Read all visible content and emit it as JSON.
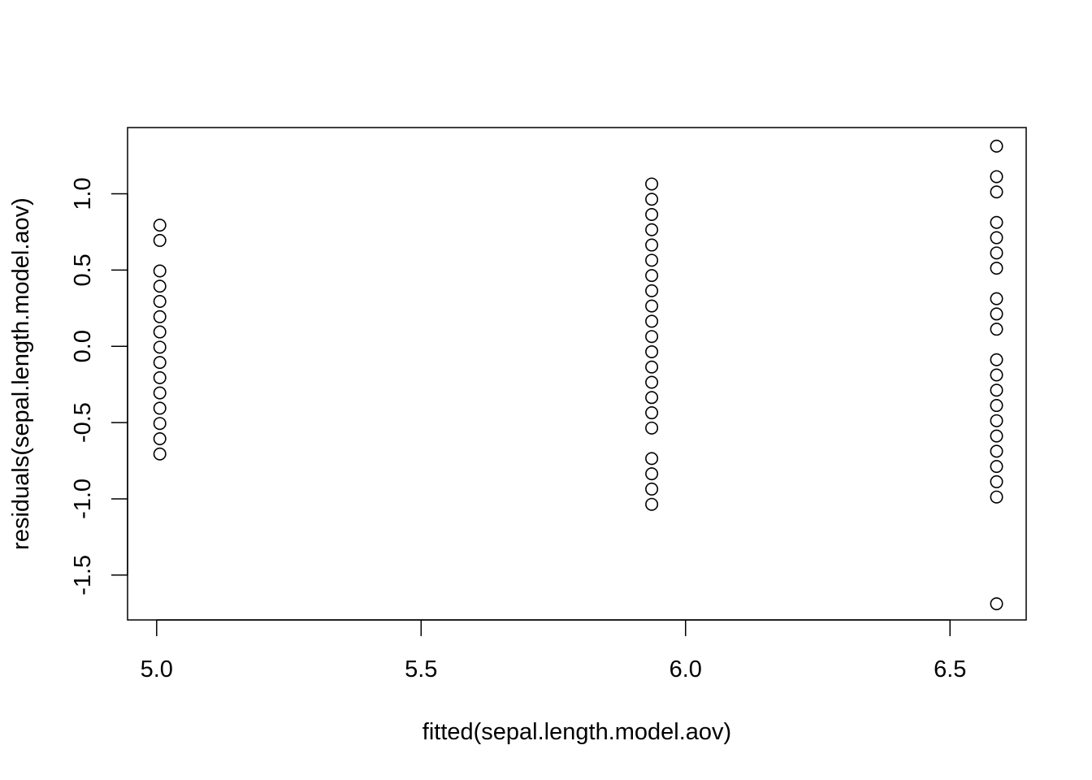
{
  "chart_data": {
    "type": "scatter",
    "title": "",
    "xlabel": "fitted(sepal.length.model.aov)",
    "ylabel": "residuals(sepal.length.model.aov)",
    "xlim": [
      4.945,
      6.644
    ],
    "ylim": [
      -1.794,
      1.434
    ],
    "xticks": [
      "5.0",
      "5.5",
      "6.0",
      "6.5"
    ],
    "yticks": [
      "-1.5",
      "-1.0",
      "-0.5",
      "0.0",
      "0.5",
      "1.0"
    ],
    "xtick_values": [
      5.0,
      5.5,
      6.0,
      6.5
    ],
    "ytick_values": [
      -1.5,
      -1.0,
      -0.5,
      0.0,
      0.5,
      1.0
    ],
    "grid": false,
    "points": [
      {
        "x": 5.006,
        "y": 0.794
      },
      {
        "x": 5.006,
        "y": 0.694
      },
      {
        "x": 5.006,
        "y": 0.494
      },
      {
        "x": 5.006,
        "y": 0.394
      },
      {
        "x": 5.006,
        "y": 0.294
      },
      {
        "x": 5.006,
        "y": 0.194
      },
      {
        "x": 5.006,
        "y": 0.094
      },
      {
        "x": 5.006,
        "y": -0.006
      },
      {
        "x": 5.006,
        "y": -0.106
      },
      {
        "x": 5.006,
        "y": -0.206
      },
      {
        "x": 5.006,
        "y": -0.306
      },
      {
        "x": 5.006,
        "y": -0.406
      },
      {
        "x": 5.006,
        "y": -0.506
      },
      {
        "x": 5.006,
        "y": -0.606
      },
      {
        "x": 5.006,
        "y": -0.706
      },
      {
        "x": 5.936,
        "y": 1.064
      },
      {
        "x": 5.936,
        "y": 0.964
      },
      {
        "x": 5.936,
        "y": 0.864
      },
      {
        "x": 5.936,
        "y": 0.764
      },
      {
        "x": 5.936,
        "y": 0.664
      },
      {
        "x": 5.936,
        "y": 0.564
      },
      {
        "x": 5.936,
        "y": 0.464
      },
      {
        "x": 5.936,
        "y": 0.364
      },
      {
        "x": 5.936,
        "y": 0.264
      },
      {
        "x": 5.936,
        "y": 0.164
      },
      {
        "x": 5.936,
        "y": 0.064
      },
      {
        "x": 5.936,
        "y": -0.036
      },
      {
        "x": 5.936,
        "y": -0.136
      },
      {
        "x": 5.936,
        "y": -0.236
      },
      {
        "x": 5.936,
        "y": -0.336
      },
      {
        "x": 5.936,
        "y": -0.436
      },
      {
        "x": 5.936,
        "y": -0.536
      },
      {
        "x": 5.936,
        "y": -0.736
      },
      {
        "x": 5.936,
        "y": -0.836
      },
      {
        "x": 5.936,
        "y": -0.936
      },
      {
        "x": 5.936,
        "y": -1.036
      },
      {
        "x": 6.588,
        "y": 1.312
      },
      {
        "x": 6.588,
        "y": 1.112
      },
      {
        "x": 6.588,
        "y": 1.012
      },
      {
        "x": 6.588,
        "y": 0.812
      },
      {
        "x": 6.588,
        "y": 0.712
      },
      {
        "x": 6.588,
        "y": 0.612
      },
      {
        "x": 6.588,
        "y": 0.512
      },
      {
        "x": 6.588,
        "y": 0.312
      },
      {
        "x": 6.588,
        "y": 0.212
      },
      {
        "x": 6.588,
        "y": 0.112
      },
      {
        "x": 6.588,
        "y": -0.088
      },
      {
        "x": 6.588,
        "y": -0.188
      },
      {
        "x": 6.588,
        "y": -0.288
      },
      {
        "x": 6.588,
        "y": -0.388
      },
      {
        "x": 6.588,
        "y": -0.488
      },
      {
        "x": 6.588,
        "y": -0.588
      },
      {
        "x": 6.588,
        "y": -0.688
      },
      {
        "x": 6.588,
        "y": -0.788
      },
      {
        "x": 6.588,
        "y": -0.888
      },
      {
        "x": 6.588,
        "y": -0.988
      },
      {
        "x": 6.588,
        "y": -1.688
      }
    ]
  }
}
